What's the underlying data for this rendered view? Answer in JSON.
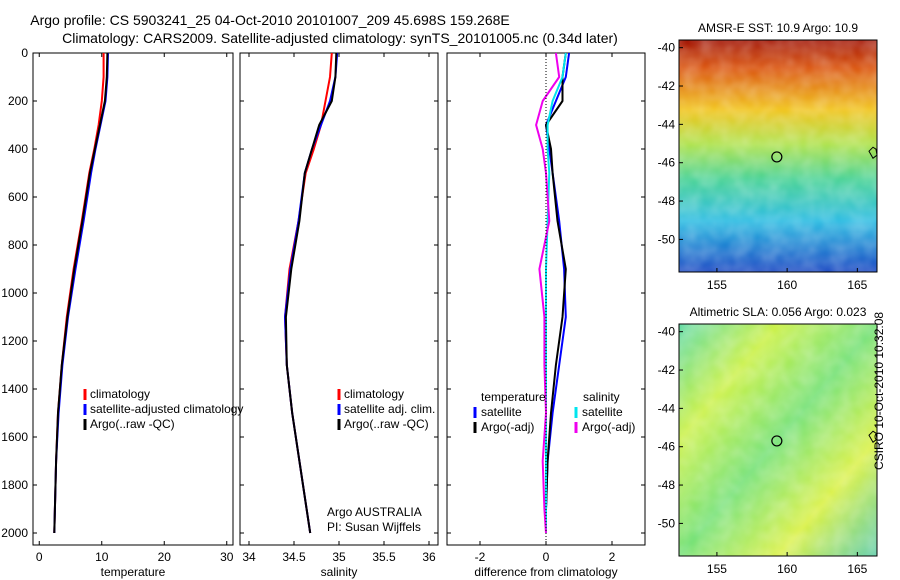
{
  "header": {
    "line1": "Argo profile: CS 5903241_25 04-Oct-2010 20101007_209 45.698S 159.268E",
    "line2": "Climatology: CARS2009. Satellite-adjusted climatology: synTS_20101005.nc (0.34d later)"
  },
  "colors": {
    "climatology": "#ff0000",
    "satellite": "#0000ff",
    "argo": "#000000",
    "sat_salinity": "#00e5ee",
    "argo_salinity": "#ee00ee"
  },
  "chart_data": [
    {
      "type": "line",
      "xlabel": "temperature",
      "ylabel": "",
      "xlim": [
        -1,
        31
      ],
      "ylim": [
        2050,
        0
      ],
      "y_reversed": true,
      "xticks": [
        0,
        10,
        20,
        30
      ],
      "yticks": [
        0,
        200,
        400,
        600,
        800,
        1000,
        1200,
        1400,
        1600,
        1800,
        2000
      ],
      "legend": [
        "climatology",
        "satellite-adjusted climatology",
        "Argo(..raw -QC)"
      ],
      "series": [
        {
          "name": "climatology",
          "color": "#ff0000",
          "x": [
            10.3,
            10.3,
            10.0,
            9.5,
            8.8,
            8.0,
            6.8,
            5.5,
            4.4,
            3.6,
            3.0,
            2.7,
            2.5,
            2.4
          ],
          "y": [
            0,
            100,
            200,
            300,
            400,
            500,
            700,
            900,
            1100,
            1300,
            1500,
            1700,
            1900,
            2000
          ]
        },
        {
          "name": "satellite-adjusted climatology",
          "color": "#0000ff",
          "x": [
            11.0,
            10.9,
            10.6,
            9.8,
            9.0,
            8.3,
            7.1,
            5.8,
            4.6,
            3.7,
            3.1,
            2.7,
            2.5,
            2.4
          ],
          "y": [
            0,
            100,
            200,
            300,
            400,
            500,
            700,
            900,
            1100,
            1300,
            1500,
            1700,
            1900,
            2000
          ]
        },
        {
          "name": "Argo(..raw -QC)",
          "color": "#000000",
          "x": [
            10.9,
            10.8,
            10.5,
            9.7,
            8.9,
            8.1,
            6.9,
            5.6,
            4.5,
            3.6,
            3.0,
            2.7,
            2.5,
            2.4
          ],
          "y": [
            0,
            100,
            200,
            300,
            400,
            500,
            700,
            900,
            1100,
            1300,
            1500,
            1700,
            1900,
            2000
          ]
        }
      ]
    },
    {
      "type": "line",
      "xlabel": "salinity",
      "ylabel": "",
      "xlim": [
        33.9,
        36.1
      ],
      "ylim": [
        2050,
        0
      ],
      "y_reversed": true,
      "xticks": [
        34,
        34.5,
        35,
        35.5,
        36
      ],
      "legend": [
        "climatology",
        "satellite adj. clim.",
        "Argo(..raw -QC)"
      ],
      "annotation": [
        "Argo AUSTRALIA",
        "PI: Susan Wijffels"
      ],
      "series": [
        {
          "name": "climatology",
          "color": "#ff0000",
          "x": [
            34.92,
            34.9,
            34.85,
            34.8,
            34.72,
            34.63,
            34.55,
            34.45,
            34.4,
            34.42,
            34.48,
            34.56,
            34.64,
            34.68
          ],
          "y": [
            0,
            100,
            200,
            300,
            400,
            500,
            700,
            900,
            1100,
            1300,
            1500,
            1700,
            1900,
            2000
          ]
        },
        {
          "name": "satellite adj. clim.",
          "color": "#0000ff",
          "x": [
            34.98,
            34.96,
            34.9,
            34.8,
            34.7,
            34.62,
            34.55,
            34.46,
            34.4,
            34.42,
            34.48,
            34.56,
            34.64,
            34.68
          ],
          "y": [
            0,
            100,
            200,
            300,
            400,
            500,
            700,
            900,
            1100,
            1300,
            1500,
            1700,
            1900,
            2000
          ]
        },
        {
          "name": "Argo(..raw -QC)",
          "color": "#000000",
          "x": [
            34.97,
            34.96,
            34.92,
            34.78,
            34.7,
            34.62,
            34.56,
            34.47,
            34.41,
            34.42,
            34.48,
            34.56,
            34.64,
            34.68
          ],
          "y": [
            0,
            100,
            200,
            300,
            400,
            500,
            700,
            900,
            1100,
            1300,
            1500,
            1700,
            1900,
            2000
          ]
        }
      ]
    },
    {
      "type": "line",
      "xlabel": "difference from climatology",
      "ylabel": "",
      "xlim": [
        -3,
        3
      ],
      "ylim": [
        2050,
        0
      ],
      "y_reversed": true,
      "xticks": [
        -2,
        0,
        2
      ],
      "legend_temperature": [
        "temperature",
        "satellite",
        "Argo(-adj)"
      ],
      "legend_salinity": [
        "salinity",
        "satellite",
        "Argo(-adj)"
      ],
      "series": [
        {
          "name": "satellite",
          "color": "#0000ff",
          "x": [
            0.7,
            0.6,
            0.3,
            0.0,
            0.1,
            0.2,
            0.4,
            0.55,
            0.6,
            0.4,
            0.2,
            0.05,
            0.0,
            0.0
          ],
          "y": [
            0,
            100,
            200,
            300,
            400,
            500,
            700,
            900,
            1100,
            1300,
            1500,
            1700,
            1900,
            2000
          ]
        },
        {
          "name": "Argo(-adj)",
          "color": "#000000",
          "x": [
            0.6,
            0.5,
            0.5,
            0.0,
            0.15,
            0.2,
            0.35,
            0.6,
            0.5,
            0.3,
            0.15,
            0.05,
            0.0,
            0.0
          ],
          "y": [
            0,
            100,
            200,
            300,
            400,
            500,
            700,
            900,
            1100,
            1300,
            1500,
            1700,
            1900,
            2000
          ]
        },
        {
          "name": "salinity satellite",
          "color": "#00e5ee",
          "x": [
            0.6,
            0.5,
            0.2,
            0.05,
            0.05,
            0.1,
            0.05,
            0.0,
            0.0,
            0.0,
            0.0,
            0.0,
            0.0,
            0.0
          ],
          "y": [
            0,
            100,
            200,
            300,
            400,
            500,
            700,
            900,
            1100,
            1300,
            1500,
            1700,
            1900,
            2000
          ]
        },
        {
          "name": "salinity Argo(-adj)",
          "color": "#ee00ee",
          "x": [
            0.3,
            0.4,
            -0.1,
            -0.3,
            -0.1,
            0.0,
            0.1,
            -0.2,
            -0.05,
            -0.05,
            0.0,
            -0.1,
            -0.05,
            0.0
          ],
          "y": [
            0,
            100,
            200,
            300,
            400,
            500,
            700,
            900,
            1100,
            1300,
            1500,
            1700,
            1900,
            2000
          ]
        }
      ]
    },
    {
      "type": "heatmap",
      "title": "AMSR-E SST: 10.9 Argo: 10.9",
      "xlim": [
        152.3,
        166.4
      ],
      "ylim": [
        -51.7,
        -39.6
      ],
      "xticks": [
        155,
        160,
        165
      ],
      "yticks": [
        -40,
        -42,
        -44,
        -46,
        -48,
        -50
      ],
      "marker": {
        "x": 159.268,
        "y": -45.698
      }
    },
    {
      "type": "heatmap",
      "title": "Altimetric SLA: 0.056 Argo: 0.023",
      "xlim": [
        152.3,
        166.4
      ],
      "ylim": [
        -51.7,
        -39.6
      ],
      "xticks": [
        155,
        160,
        165
      ],
      "yticks": [
        -40,
        -42,
        -44,
        -46,
        -48,
        -50
      ],
      "marker": {
        "x": 159.268,
        "y": -45.698
      }
    }
  ],
  "stamp": "CSIRO 10-Oct-2010 10:32:08"
}
